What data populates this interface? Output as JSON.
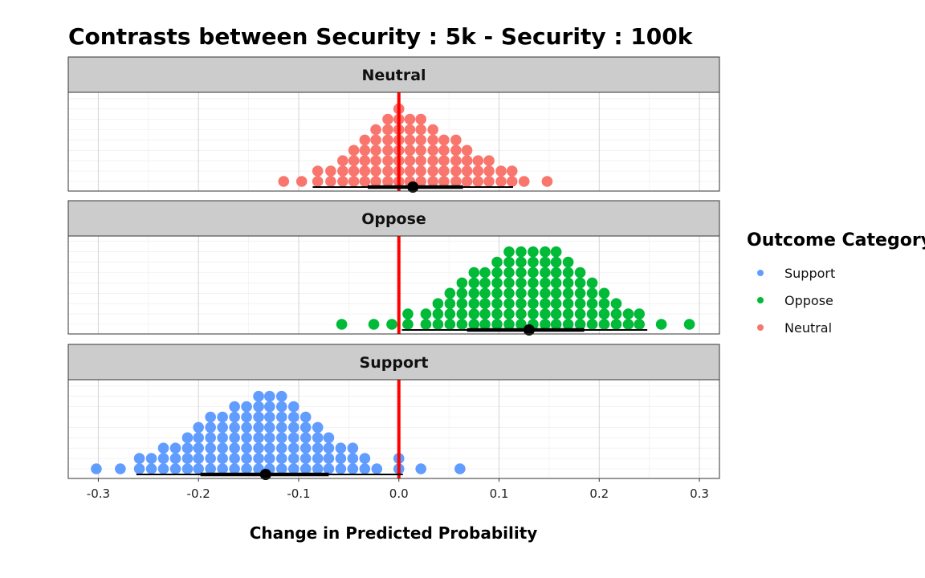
{
  "chart_data": {
    "type": "dotplot",
    "title": "Contrasts between Security : 5k - Security : 100k",
    "xlabel": "Change in Predicted Probability",
    "ylabel": "",
    "xlim": [
      -0.33,
      0.32
    ],
    "xticks": [
      -0.3,
      -0.2,
      -0.1,
      0.0,
      0.1,
      0.2,
      0.3
    ],
    "xtick_labels": [
      "-0.3",
      "-0.2",
      "-0.1",
      "0.0",
      "0.1",
      "0.2",
      "0.3"
    ],
    "reference_line": {
      "x": 0.0,
      "color": "#ff0000"
    },
    "grid": true,
    "binwidth": 0.012,
    "legend": {
      "title": "Outcome Category",
      "placement": "right",
      "entries": [
        {
          "label": "Support",
          "color": "#619CFF"
        },
        {
          "label": "Oppose",
          "color": "#00BA38"
        },
        {
          "label": "Neutral",
          "color": "#F8766D"
        }
      ]
    },
    "panels": [
      {
        "name": "Neutral",
        "color": "#F8766D",
        "point_estimate": 0.014,
        "interval_inner": [
          -0.031,
          0.064
        ],
        "interval_outer": [
          -0.086,
          0.114
        ],
        "bins": [
          {
            "x": -0.115,
            "count": 1
          },
          {
            "x": -0.097,
            "count": 1
          },
          {
            "x": -0.081,
            "count": 2
          },
          {
            "x": -0.068,
            "count": 2
          },
          {
            "x": -0.056,
            "count": 3
          },
          {
            "x": -0.045,
            "count": 4
          },
          {
            "x": -0.034,
            "count": 5
          },
          {
            "x": -0.023,
            "count": 6
          },
          {
            "x": -0.011,
            "count": 7
          },
          {
            "x": 0.0,
            "count": 8
          },
          {
            "x": 0.011,
            "count": 7
          },
          {
            "x": 0.022,
            "count": 7
          },
          {
            "x": 0.034,
            "count": 6
          },
          {
            "x": 0.045,
            "count": 5
          },
          {
            "x": 0.057,
            "count": 5
          },
          {
            "x": 0.068,
            "count": 4
          },
          {
            "x": 0.079,
            "count": 3
          },
          {
            "x": 0.09,
            "count": 3
          },
          {
            "x": 0.102,
            "count": 2
          },
          {
            "x": 0.113,
            "count": 2
          },
          {
            "x": 0.125,
            "count": 1
          },
          {
            "x": 0.148,
            "count": 1
          }
        ]
      },
      {
        "name": "Oppose",
        "color": "#00BA38",
        "point_estimate": 0.13,
        "interval_inner": [
          0.068,
          0.185
        ],
        "interval_outer": [
          0.003,
          0.248
        ],
        "bins": [
          {
            "x": -0.057,
            "count": 1
          },
          {
            "x": -0.025,
            "count": 1
          },
          {
            "x": -0.007,
            "count": 1
          },
          {
            "x": 0.009,
            "count": 2
          },
          {
            "x": 0.027,
            "count": 2
          },
          {
            "x": 0.039,
            "count": 3
          },
          {
            "x": 0.051,
            "count": 4
          },
          {
            "x": 0.063,
            "count": 5
          },
          {
            "x": 0.075,
            "count": 6
          },
          {
            "x": 0.086,
            "count": 6
          },
          {
            "x": 0.098,
            "count": 7
          },
          {
            "x": 0.11,
            "count": 8
          },
          {
            "x": 0.122,
            "count": 8
          },
          {
            "x": 0.134,
            "count": 8
          },
          {
            "x": 0.146,
            "count": 8
          },
          {
            "x": 0.157,
            "count": 8
          },
          {
            "x": 0.169,
            "count": 7
          },
          {
            "x": 0.181,
            "count": 6
          },
          {
            "x": 0.193,
            "count": 5
          },
          {
            "x": 0.205,
            "count": 4
          },
          {
            "x": 0.217,
            "count": 3
          },
          {
            "x": 0.229,
            "count": 2
          },
          {
            "x": 0.24,
            "count": 2
          },
          {
            "x": 0.262,
            "count": 1
          },
          {
            "x": 0.29,
            "count": 1
          }
        ]
      },
      {
        "name": "Support",
        "color": "#619CFF",
        "point_estimate": -0.133,
        "interval_inner": [
          -0.198,
          -0.07
        ],
        "interval_outer": [
          -0.262,
          0.004
        ],
        "bins": [
          {
            "x": -0.302,
            "count": 1
          },
          {
            "x": -0.278,
            "count": 1
          },
          {
            "x": -0.259,
            "count": 2
          },
          {
            "x": -0.247,
            "count": 2
          },
          {
            "x": -0.235,
            "count": 3
          },
          {
            "x": -0.223,
            "count": 3
          },
          {
            "x": -0.211,
            "count": 4
          },
          {
            "x": -0.2,
            "count": 5
          },
          {
            "x": -0.188,
            "count": 6
          },
          {
            "x": -0.176,
            "count": 6
          },
          {
            "x": -0.164,
            "count": 7
          },
          {
            "x": -0.152,
            "count": 7
          },
          {
            "x": -0.14,
            "count": 8
          },
          {
            "x": -0.129,
            "count": 8
          },
          {
            "x": -0.117,
            "count": 8
          },
          {
            "x": -0.105,
            "count": 7
          },
          {
            "x": -0.093,
            "count": 6
          },
          {
            "x": -0.081,
            "count": 5
          },
          {
            "x": -0.07,
            "count": 4
          },
          {
            "x": -0.058,
            "count": 3
          },
          {
            "x": -0.046,
            "count": 3
          },
          {
            "x": -0.034,
            "count": 2
          },
          {
            "x": -0.022,
            "count": 1
          },
          {
            "x": 0.0,
            "count": 2
          },
          {
            "x": 0.022,
            "count": 1
          },
          {
            "x": 0.061,
            "count": 1
          }
        ]
      }
    ]
  }
}
